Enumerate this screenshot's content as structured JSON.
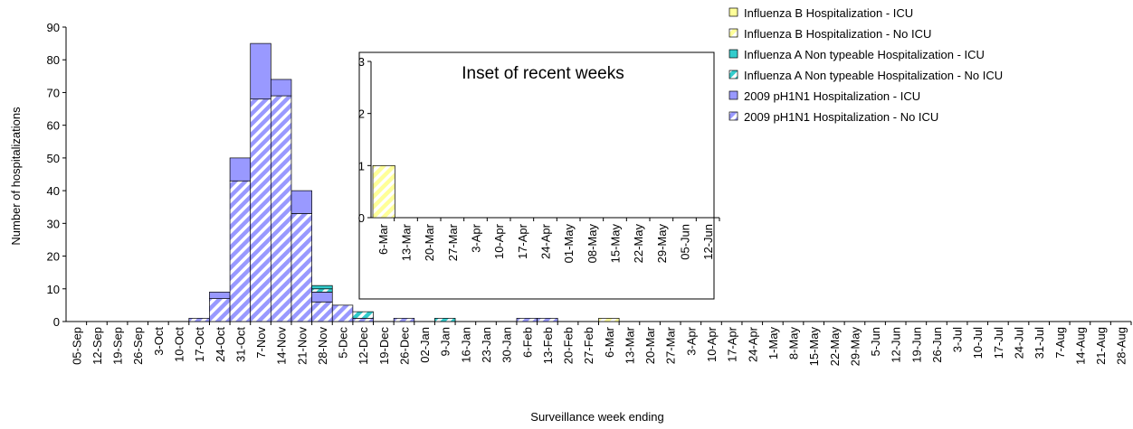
{
  "chart_data": [
    {
      "type": "bar",
      "stacked": true,
      "x_label": "Surveillance week ending",
      "y_label": "Number of hospitalizations",
      "categories": [
        "05-Sep",
        "12-Sep",
        "19-Sep",
        "26-Sep",
        "3-Oct",
        "10-Oct",
        "17-Oct",
        "24-Oct",
        "31-Oct",
        "7-Nov",
        "14-Nov",
        "21-Nov",
        "28-Nov",
        "5-Dec",
        "12-Dec",
        "19-Dec",
        "26-Dec",
        "02-Jan",
        "9-Jan",
        "16-Jan",
        "23-Jan",
        "30-Jan",
        "6-Feb",
        "13-Feb",
        "20-Feb",
        "27-Feb",
        "6-Mar",
        "13-Mar",
        "20-Mar",
        "27-Mar",
        "3-Apr",
        "10-Apr",
        "17-Apr",
        "24-Apr",
        "1-May",
        "8-May",
        "15-May",
        "22-May",
        "29-May",
        "5-Jun",
        "12-Jun",
        "19-Jun",
        "26-Jun",
        "3-Jul",
        "10-Jul",
        "17-Jul",
        "24-Jul",
        "31-Jul",
        "7-Aug",
        "14-Aug",
        "21-Aug",
        "28-Aug"
      ],
      "series": [
        {
          "name": "2009 pH1N1 Hospitalization - No ICU",
          "color": "#9999ff",
          "hatched": true,
          "values": [
            0,
            0,
            0,
            0,
            0,
            0,
            1,
            7,
            43,
            68,
            69,
            33,
            6,
            5,
            1,
            0,
            1,
            0,
            0,
            0,
            0,
            0,
            1,
            1,
            0,
            0,
            0,
            0,
            0,
            0,
            0,
            0,
            0,
            0,
            0,
            0,
            0,
            0,
            0,
            0,
            0,
            0,
            0,
            0,
            0,
            0,
            0,
            0,
            0,
            0,
            0,
            0
          ]
        },
        {
          "name": "2009 pH1N1 Hospitalization - ICU",
          "color": "#9999ff",
          "hatched": false,
          "values": [
            0,
            0,
            0,
            0,
            0,
            0,
            0,
            2,
            7,
            17,
            5,
            7,
            3,
            0,
            0,
            0,
            0,
            0,
            0,
            0,
            0,
            0,
            0,
            0,
            0,
            0,
            0,
            0,
            0,
            0,
            0,
            0,
            0,
            0,
            0,
            0,
            0,
            0,
            0,
            0,
            0,
            0,
            0,
            0,
            0,
            0,
            0,
            0,
            0,
            0,
            0,
            0
          ]
        },
        {
          "name": "Influenza A Non typeable Hospitalization - No ICU",
          "color": "#33cccc",
          "hatched": true,
          "values": [
            0,
            0,
            0,
            0,
            0,
            0,
            0,
            0,
            0,
            0,
            0,
            0,
            1,
            0,
            2,
            0,
            0,
            0,
            1,
            0,
            0,
            0,
            0,
            0,
            0,
            0,
            0,
            0,
            0,
            0,
            0,
            0,
            0,
            0,
            0,
            0,
            0,
            0,
            0,
            0,
            0,
            0,
            0,
            0,
            0,
            0,
            0,
            0,
            0,
            0,
            0,
            0
          ]
        },
        {
          "name": "Influenza A Non typeable Hospitalization - ICU",
          "color": "#33cccc",
          "hatched": false,
          "values": [
            0,
            0,
            0,
            0,
            0,
            0,
            0,
            0,
            0,
            0,
            0,
            0,
            1,
            0,
            0,
            0,
            0,
            0,
            0,
            0,
            0,
            0,
            0,
            0,
            0,
            0,
            0,
            0,
            0,
            0,
            0,
            0,
            0,
            0,
            0,
            0,
            0,
            0,
            0,
            0,
            0,
            0,
            0,
            0,
            0,
            0,
            0,
            0,
            0,
            0,
            0,
            0
          ]
        },
        {
          "name": "Influenza B Hospitalization - No ICU",
          "color": "#ffff99",
          "hatched": true,
          "values": [
            0,
            0,
            0,
            0,
            0,
            0,
            0,
            0,
            0,
            0,
            0,
            0,
            0,
            0,
            0,
            0,
            0,
            0,
            0,
            0,
            0,
            0,
            0,
            0,
            0,
            0,
            1,
            0,
            0,
            0,
            0,
            0,
            0,
            0,
            0,
            0,
            0,
            0,
            0,
            0,
            0,
            0,
            0,
            0,
            0,
            0,
            0,
            0,
            0,
            0,
            0,
            0
          ]
        },
        {
          "name": "Influenza B Hospitalization - ICU",
          "color": "#ffff99",
          "hatched": false,
          "values": [
            0,
            0,
            0,
            0,
            0,
            0,
            0,
            0,
            0,
            0,
            0,
            0,
            0,
            0,
            0,
            0,
            0,
            0,
            0,
            0,
            0,
            0,
            0,
            0,
            0,
            0,
            0,
            0,
            0,
            0,
            0,
            0,
            0,
            0,
            0,
            0,
            0,
            0,
            0,
            0,
            0,
            0,
            0,
            0,
            0,
            0,
            0,
            0,
            0,
            0,
            0,
            0
          ]
        }
      ],
      "ylim": [
        0,
        90
      ],
      "yticks": [
        0,
        10,
        20,
        30,
        40,
        50,
        60,
        70,
        80,
        90
      ]
    },
    {
      "type": "bar",
      "title": "Inset of recent weeks",
      "categories": [
        "6-Mar",
        "13-Mar",
        "20-Mar",
        "27-Mar",
        "3-Apr",
        "10-Apr",
        "17-Apr",
        "24-Apr",
        "01-May",
        "08-May",
        "15-May",
        "22-May",
        "29-May",
        "05-Jun",
        "12-Jun"
      ],
      "values": [
        1,
        0,
        0,
        0,
        0,
        0,
        0,
        0,
        0,
        0,
        0,
        0,
        0,
        0,
        0
      ],
      "color": "#ffff99",
      "hatched": true,
      "ylim": [
        0,
        3
      ],
      "yticks": [
        0,
        1,
        2,
        3
      ]
    }
  ]
}
